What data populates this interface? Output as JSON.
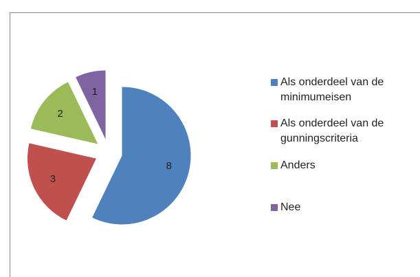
{
  "chart_data": {
    "type": "pie",
    "categories": [
      "Als onderdeel van de minimumeisen",
      "Als onderdeel van de gunningscriteria",
      "Anders",
      "Nee"
    ],
    "values": [
      8,
      3,
      2,
      1
    ],
    "colors": [
      "#4f81bd",
      "#c0504d",
      "#9bbb59",
      "#8064a2"
    ],
    "legend": "right"
  }
}
